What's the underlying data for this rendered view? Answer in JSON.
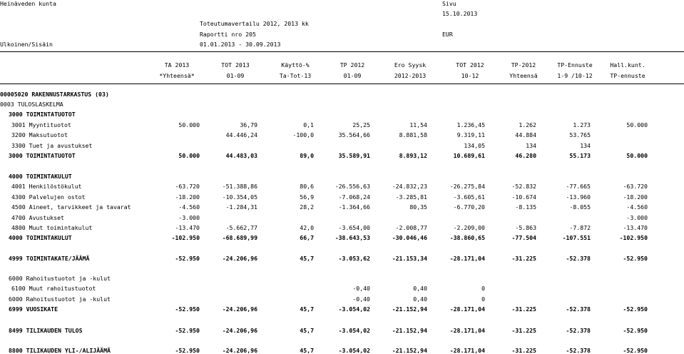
{
  "header": {
    "org": "Heinäveden kunta",
    "page_label": "Sivu",
    "date": "15.10.2013",
    "title": "Toteutumavertailu 2012, 2013 kk",
    "report": "Raportti nro 205",
    "currency": "EUR",
    "scope": "Ulkoinen/Sisäin",
    "period": "01.01.2013 - 30.09.2013"
  },
  "columns": {
    "top": [
      "TA 2013",
      "TOT 2013",
      "Käyttö-%",
      "TP 2012",
      "Ero Syysk",
      "TOT 2012",
      "TP-2012",
      "TP-Ennuste",
      "Hall.kunt."
    ],
    "sub": [
      "*Yhteensä*",
      "01-09",
      "Ta-Tot-13",
      "01-09",
      "2012-2013",
      "10-12",
      "Yhteensä",
      "1-9 /10-12",
      "TP-ennuste"
    ]
  },
  "section": {
    "code": "00005020 RAKENNUSTARKASTUS (03)",
    "statement": "0003 TULOSLASKELMA"
  },
  "rows": [
    {
      "label": "3000 TOIMINTATUOTOT",
      "bold": true,
      "values": [
        "",
        "",
        "",
        "",
        "",
        "",
        "",
        "",
        ""
      ]
    },
    {
      "label": "3001 Myyntituotot",
      "bold": false,
      "values": [
        "50.000",
        "36,79",
        "0,1",
        "25,25",
        "11,54",
        "1.236,45",
        "1.262",
        "1.273",
        "50.000"
      ]
    },
    {
      "label": "3200 Maksutuotot",
      "bold": false,
      "values": [
        "",
        "44.446,24",
        "-100,0",
        "35.564,66",
        "8.881,58",
        "9.319,11",
        "44.884",
        "53.765",
        ""
      ]
    },
    {
      "label": "3300 Tuet ja avustukset",
      "bold": false,
      "values": [
        "",
        "",
        "",
        "",
        "",
        "134,05",
        "134",
        "134",
        ""
      ]
    },
    {
      "label": "3000 TOIMINTATUOTOT",
      "bold": true,
      "values": [
        "50.000",
        "44.483,03",
        "89,0",
        "35.589,91",
        "8.893,12",
        "10.689,61",
        "46.280",
        "55.173",
        "50.000"
      ]
    },
    {
      "label": "4000 TOIMINTAKULUT",
      "bold": true,
      "values": [
        "",
        "",
        "",
        "",
        "",
        "",
        "",
        "",
        ""
      ]
    },
    {
      "label": "4001 Henkilöstökulut",
      "bold": false,
      "values": [
        "-63.720",
        "-51.388,86",
        "80,6",
        "-26.556,63",
        "-24.832,23",
        "-26.275,84",
        "-52.832",
        "-77.665",
        "-63.720"
      ]
    },
    {
      "label": "4300 Palvelujen ostot",
      "bold": false,
      "values": [
        "-18.200",
        "-10.354,05",
        "56,9",
        "-7.068,24",
        "-3.285,81",
        "-3.605,61",
        "-10.674",
        "-13.960",
        "-18.200"
      ]
    },
    {
      "label": "4500 Aineet, tarvikkeet ja tavarat",
      "bold": false,
      "values": [
        "-4.560",
        "-1.284,31",
        "28,2",
        "-1.364,66",
        "80,35",
        "-6.770,20",
        "-8.135",
        "-8.055",
        "-4.560"
      ]
    },
    {
      "label": "4700 Avustukset",
      "bold": false,
      "values": [
        "-3.000",
        "",
        "",
        "",
        "",
        "",
        "",
        "",
        "-3.000"
      ]
    },
    {
      "label": "4800 Muut toimintakulut",
      "bold": false,
      "values": [
        "-13.470",
        "-5.662,77",
        "42,0",
        "-3.654,00",
        "-2.008,77",
        "-2.209,00",
        "-5.863",
        "-7.872",
        "-13.470"
      ]
    },
    {
      "label": "4000 TOIMINTAKULUT",
      "bold": true,
      "values": [
        "-102.950",
        "-68.689,99",
        "66,7",
        "-38.643,53",
        "-30.046,46",
        "-38.860,65",
        "-77.504",
        "-107.551",
        "-102.950"
      ]
    },
    {
      "label": "4999 TOIMINTAKATE/JÄÄMÄ",
      "bold": true,
      "values": [
        "-52.950",
        "-24.206,96",
        "45,7",
        "-3.053,62",
        "-21.153,34",
        "-28.171,04",
        "-31.225",
        "-52.378",
        "-52.950"
      ]
    },
    {
      "label": "6000 Rahoitustuotot ja -kulut",
      "bold": false,
      "values": [
        "",
        "",
        "",
        "",
        "",
        "",
        "",
        "",
        ""
      ]
    },
    {
      "label": "6100 Muut rahoitustuotot",
      "bold": false,
      "values": [
        "",
        "",
        "",
        "-0,40",
        "0,40",
        "0",
        "",
        "",
        ""
      ]
    },
    {
      "label": "6000 Rahoitustuotot ja -kulut",
      "bold": false,
      "values": [
        "",
        "",
        "",
        "-0,40",
        "0,40",
        "0",
        "",
        "",
        ""
      ]
    },
    {
      "label": "6999 VUOSIKATE",
      "bold": true,
      "values": [
        "-52.950",
        "-24.206,96",
        "45,7",
        "-3.054,02",
        "-21.152,94",
        "-28.171,04",
        "-31.225",
        "-52.378",
        "-52.950"
      ]
    },
    {
      "label": "8499 TILIKAUDEN TULOS",
      "bold": true,
      "values": [
        "-52.950",
        "-24.206,96",
        "45,7",
        "-3.054,02",
        "-21.152,94",
        "-28.171,04",
        "-31.225",
        "-52.378",
        "-52.950"
      ]
    },
    {
      "label": "8800 TILIKAUDEN YLI-/ALIJÄÄMÄ",
      "bold": true,
      "values": [
        "-52.950",
        "-24.206,96",
        "45,7",
        "-3.054,02",
        "-21.152,94",
        "-28.171,04",
        "-31.225",
        "-52.378",
        "-52.950"
      ]
    }
  ]
}
